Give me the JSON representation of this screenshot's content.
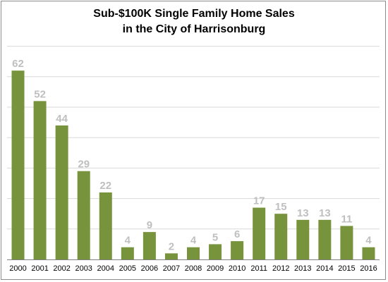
{
  "chart_data": {
    "type": "bar",
    "title": "Sub-$100K Single Family Home Sales",
    "subtitle": "in the City of Harrisonburg",
    "categories": [
      "2000",
      "2001",
      "2002",
      "2003",
      "2004",
      "2005",
      "2006",
      "2007",
      "2008",
      "2009",
      "2010",
      "2011",
      "2012",
      "2013",
      "2014",
      "2015",
      "2016"
    ],
    "values": [
      62,
      52,
      44,
      29,
      22,
      4,
      9,
      2,
      4,
      5,
      6,
      17,
      15,
      13,
      13,
      11,
      4
    ],
    "xlabel": "",
    "ylabel": "",
    "ylim": [
      0,
      70
    ],
    "grid": true,
    "legend": "none",
    "colors": {
      "bar": "#77933c",
      "data_label": "#bfbfbf",
      "gridline": "#d9d9d9"
    }
  }
}
